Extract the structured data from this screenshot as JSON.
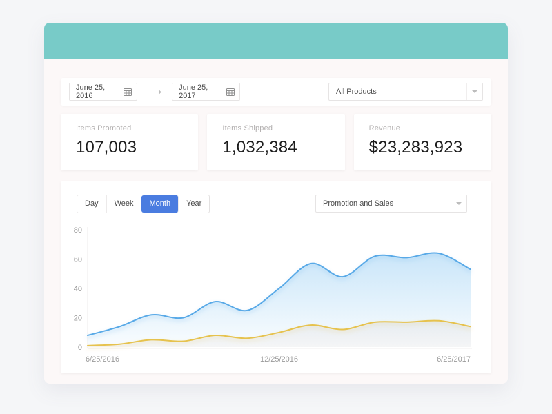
{
  "colors": {
    "header_teal": "#78CBC8",
    "active_tab": "#4A7CE0",
    "axis_text": "#9B9B9B"
  },
  "filter_bar": {
    "date_from": "June 25, 2016",
    "date_to": "June 25, 2017",
    "arrow": "⟶",
    "product_filter": "All Products"
  },
  "stats": [
    {
      "label": "Items Promoted",
      "value": "107,003"
    },
    {
      "label": "Items Shipped",
      "value": "1,032,384"
    },
    {
      "label": "Revenue",
      "value": "$23,283,923"
    }
  ],
  "chart_panel": {
    "tabs": [
      {
        "label": "Day",
        "active": false
      },
      {
        "label": "Week",
        "active": false
      },
      {
        "label": "Month",
        "active": true
      },
      {
        "label": "Year",
        "active": false
      }
    ],
    "metric_filter": "Promotion and Sales"
  },
  "chart_data": {
    "type": "area",
    "title": "",
    "x_tick_labels": [
      "6/25/2016",
      "12/25/2016",
      "6/25/2017"
    ],
    "yticks": [
      0,
      20,
      40,
      60,
      80
    ],
    "ylim": [
      0,
      80
    ],
    "grid": false,
    "legend": false,
    "series": [
      {
        "name": "Promotion",
        "line_color": "#58A9E7",
        "fill_top": "rgba(125,193,240,0.50)",
        "fill_bottom": "rgba(125,193,240,0.04)",
        "values": [
          8,
          14,
          22,
          20,
          31,
          25,
          40,
          57,
          48,
          62,
          61,
          64,
          53
        ]
      },
      {
        "name": "Sales",
        "line_color": "#E6C24D",
        "fill_top": "rgba(165,115,95,0.18)",
        "fill_bottom": "rgba(165,125,105,0.05)",
        "values": [
          1,
          2,
          5,
          4,
          8,
          6,
          10,
          15,
          12,
          17,
          17,
          18,
          14
        ]
      }
    ]
  }
}
